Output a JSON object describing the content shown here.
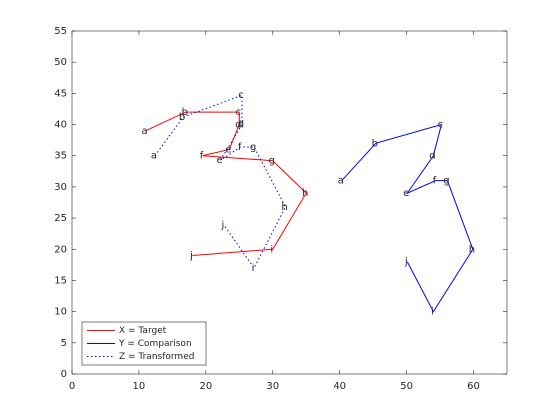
{
  "chart_data": {
    "type": "line",
    "xlim": [
      0,
      65
    ],
    "xticks": [
      0,
      10,
      20,
      30,
      40,
      50,
      60
    ],
    "ylim": [
      0,
      55
    ],
    "yticks": [
      0,
      5,
      10,
      15,
      20,
      25,
      30,
      35,
      40,
      45,
      50,
      55
    ],
    "legend": "southwest",
    "series": [
      {
        "name": "X = Target",
        "color": "#ff0000",
        "linestyle": "solid",
        "point_labels": [
          "a",
          "b",
          "c",
          "d",
          "e",
          "f",
          "g",
          "h",
          "i",
          "j"
        ],
        "x": [
          11,
          17,
          25,
          25,
          23.5,
          19.5,
          30,
          35,
          30,
          18
        ],
        "values": [
          39,
          42,
          42,
          40,
          36,
          35,
          34.2,
          29,
          20,
          19
        ]
      },
      {
        "name": "Y = Comparison",
        "color": "#0000ff",
        "linestyle": "solid",
        "point_labels": [
          "a",
          "b",
          "c",
          "d",
          "e",
          "f",
          "g",
          "h",
          "i",
          "j"
        ],
        "x": [
          40.3,
          45.4,
          55.2,
          54,
          50.1,
          54.3,
          56.1,
          59.9,
          54,
          50.1
        ],
        "values": [
          31,
          37,
          40,
          35,
          29,
          31,
          31,
          20,
          10,
          18
        ]
      },
      {
        "name": "Z = Transformed",
        "color": "#0000ff",
        "linestyle": "dotted",
        "point_labels": [
          "a",
          "b",
          "c",
          "d",
          "e",
          "f",
          "g",
          "h",
          "i",
          "j"
        ],
        "x": [
          12.4,
          16.6,
          25.4,
          25.4,
          22.2,
          25.2,
          27.2,
          31.9,
          27.2,
          22.7
        ],
        "values": [
          35,
          41.2,
          44.7,
          40,
          34.3,
          36.4,
          36.4,
          26.8,
          17,
          23.9
        ]
      }
    ]
  }
}
